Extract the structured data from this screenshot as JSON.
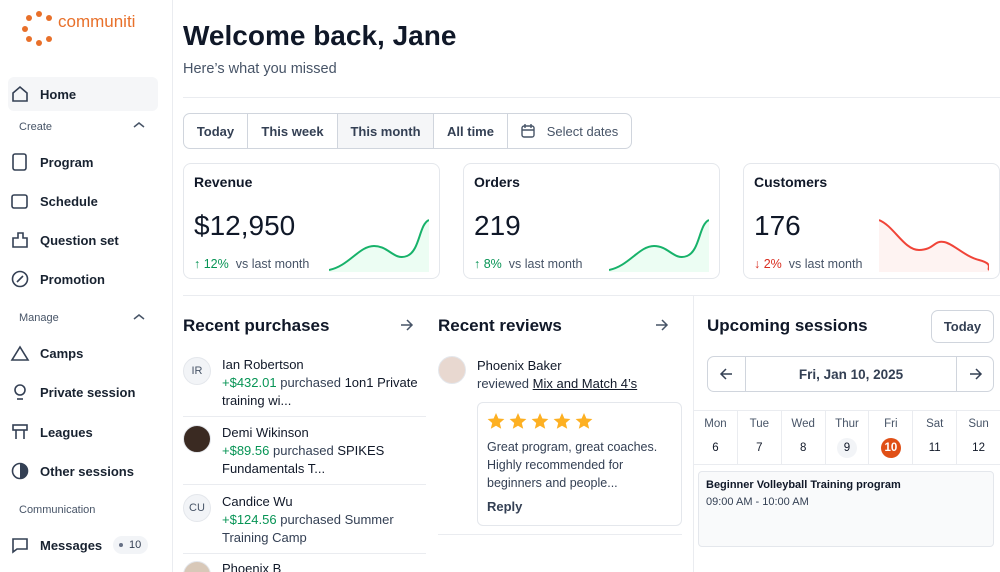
{
  "brand": "communiti",
  "sidebar": {
    "home": "Home",
    "sections": [
      {
        "title": "Create",
        "items": [
          "Program",
          "Schedule",
          "Question set",
          "Promotion"
        ]
      },
      {
        "title": "Manage",
        "items": [
          "Camps",
          "Private session",
          "Leagues",
          "Other sessions"
        ]
      },
      {
        "title": "Communication",
        "items": [
          "Messages"
        ],
        "badge": "10"
      }
    ]
  },
  "header": {
    "title": "Welcome back, Jane",
    "subtitle": "Here’s what you missed"
  },
  "filters": [
    "Today",
    "This week",
    "This month",
    "All time",
    "Select dates"
  ],
  "stats": [
    {
      "label": "Revenue",
      "value": "$12,950",
      "change": "12%",
      "note": "vs last month"
    },
    {
      "label": "Orders",
      "value": "219",
      "change": "8%",
      "note": "vs last month"
    },
    {
      "label": "Customers",
      "value": "176",
      "change": "2%",
      "note": "vs last month"
    }
  ],
  "purchases": {
    "title": "Recent purchases",
    "items": [
      {
        "initials": "IR",
        "name": "Ian Robertson",
        "amount": "+$432.01",
        "verb": "purchased",
        "item": "1on1 Private training wi..."
      },
      {
        "name": "Demi Wikinson",
        "amount": "+$89.56",
        "verb": "purchased",
        "item": "SPIKES Fundamentals T..."
      },
      {
        "initials": "CU",
        "name": "Candice Wu",
        "amount": "+$124.56",
        "verb": "purchased",
        "item": "Summer Training Camp"
      },
      {
        "name": "Phoenix B"
      }
    ]
  },
  "reviews": {
    "title": "Recent reviews",
    "items": [
      {
        "name": "Phoenix Baker",
        "verb": "reviewed",
        "link": "Mix and Match 4’s",
        "text": "Great program, great coaches. Highly recommended for beginners and people...",
        "reply": "Reply"
      }
    ]
  },
  "sessions": {
    "title": "Upcoming sessions",
    "today": "Today",
    "date": "Fri, Jan 10, 2025",
    "days": [
      {
        "name": "Mon",
        "num": "6"
      },
      {
        "name": "Tue",
        "num": "7"
      },
      {
        "name": "Wed",
        "num": "8"
      },
      {
        "name": "Thur",
        "num": "9"
      },
      {
        "name": "Fri",
        "num": "10"
      },
      {
        "name": "Sat",
        "num": "11"
      },
      {
        "name": "Sun",
        "num": "12"
      }
    ],
    "event": {
      "title": "Beginner Volleyball Training program",
      "time": "09:00 AM - 10:00 AM"
    }
  }
}
